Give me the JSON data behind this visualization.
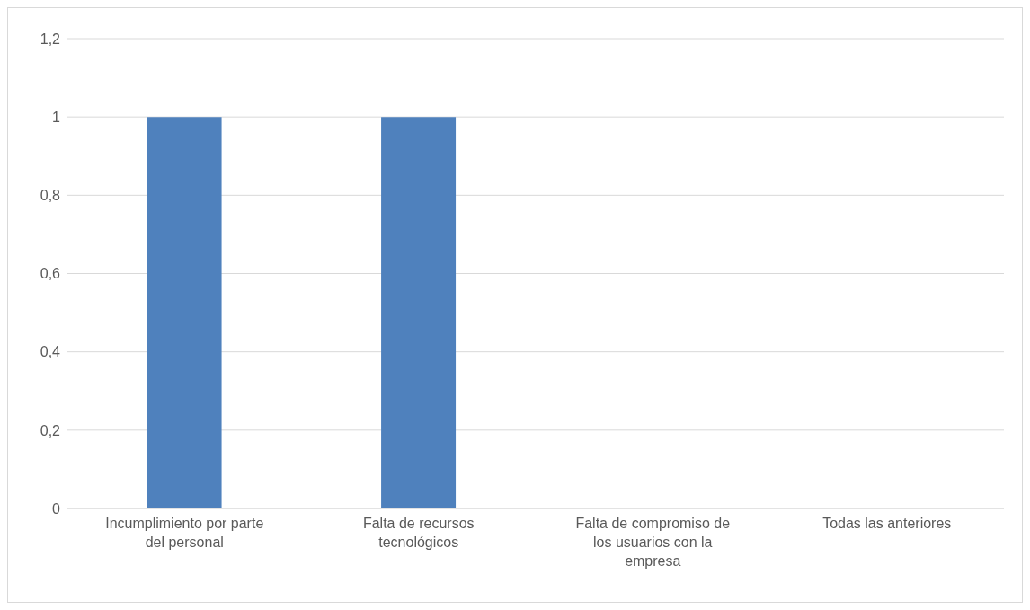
{
  "chart_data": {
    "type": "bar",
    "categories": [
      "Incumplimiento por parte del personal",
      "Falta de recursos tecnológicos",
      "Falta de compromiso de los usuarios con la empresa",
      "Todas las anteriores"
    ],
    "values": [
      1,
      1,
      0,
      0
    ],
    "color": "#4f81bd",
    "ylim": [
      0,
      1.2
    ],
    "yticks": [
      0,
      {
        "value": 0.2,
        "label": "0,2"
      },
      {
        "value": 0.4,
        "label": "0,4"
      },
      {
        "value": 0.6,
        "label": "0,6"
      },
      {
        "value": 0.8,
        "label": "0,8"
      },
      1,
      {
        "value": 1.2,
        "label": "1,2"
      }
    ],
    "grid": "y"
  }
}
